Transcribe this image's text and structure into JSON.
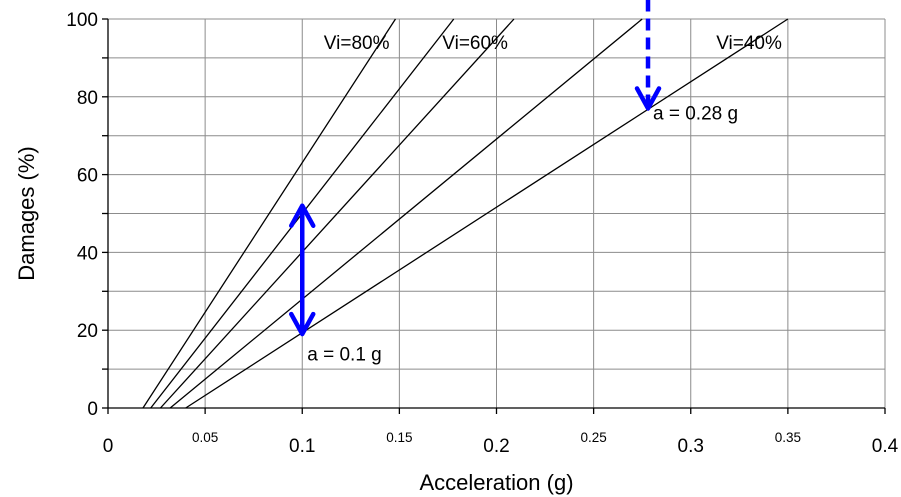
{
  "chart_data": {
    "type": "line",
    "title": "",
    "xlabel": "Acceleration (g)",
    "ylabel": "Damages (%)",
    "xlim": [
      0,
      0.4
    ],
    "ylim": [
      0,
      100
    ],
    "grid": true,
    "x_ticks_major": [
      "0",
      "0.1",
      "0.2",
      "0.3",
      "0.4"
    ],
    "x_ticks_minor": [
      "0.05",
      "0.15",
      "0.25",
      "0.35"
    ],
    "y_ticks": [
      "0",
      "20",
      "40",
      "60",
      "80",
      "100"
    ],
    "series": [
      {
        "name": "Vi=80%",
        "x": [
          0.018,
          0.148
        ],
        "y": [
          0,
          100
        ]
      },
      {
        "name": "",
        "x": [
          0.022,
          0.178
        ],
        "y": [
          0,
          100
        ]
      },
      {
        "name": "Vi=60%",
        "x": [
          0.027,
          0.209
        ],
        "y": [
          0,
          100
        ]
      },
      {
        "name": "",
        "x": [
          0.032,
          0.275
        ],
        "y": [
          0,
          100
        ]
      },
      {
        "name": "Vi=40%",
        "x": [
          0.04,
          0.35
        ],
        "y": [
          0,
          100
        ]
      }
    ],
    "annotations": [
      {
        "text": "a = 0.1 g",
        "x": 0.1,
        "y": 14
      },
      {
        "text": "a = 0.28 g",
        "x": 0.278,
        "y": 76
      }
    ],
    "arrows": [
      {
        "style": "solid",
        "double_headed": true,
        "x": 0.1,
        "y_from": 19,
        "y_to": 52,
        "color": "#0000ff"
      },
      {
        "style": "dashed",
        "double_headed": false,
        "x": 0.278,
        "y_from": 105,
        "y_to": 77,
        "color": "#0000ff"
      }
    ]
  }
}
